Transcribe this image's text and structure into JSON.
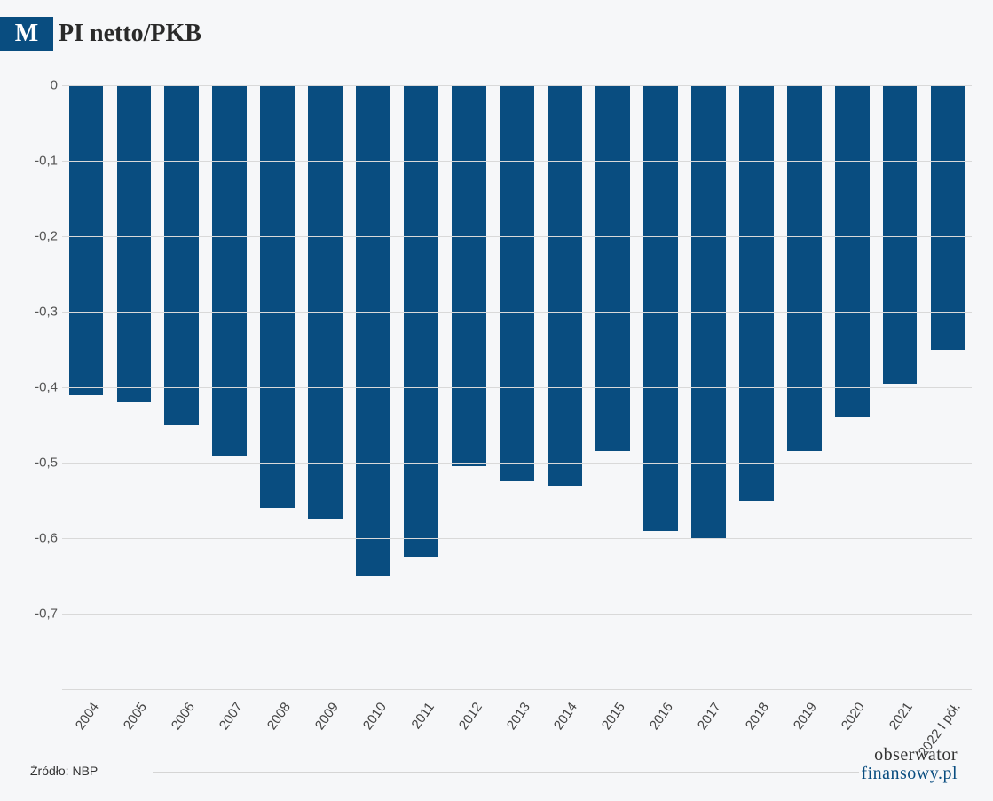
{
  "title": {
    "box_letter": "M",
    "rest": "PI netto/PKB",
    "box_bg": "#094d80",
    "box_fg": "#ffffff",
    "text_color": "#2a2a2a",
    "fontsize": 28
  },
  "chart": {
    "type": "bar",
    "background_color": "#f6f7f9",
    "grid_color": "#d9d9d9",
    "bar_color": "#094d80",
    "axis_label_color": "#555555",
    "xlabel_color": "#444444",
    "ylim": [
      -0.8,
      0
    ],
    "yticks": [
      0,
      -0.1,
      -0.2,
      -0.3,
      -0.4,
      -0.5,
      -0.6,
      -0.7
    ],
    "ytick_labels": [
      "0",
      "-0,1",
      "-0,2",
      "-0,3",
      "-0,4",
      "-0,5",
      "-0,6",
      "-0,7"
    ],
    "bar_width_ratio": 0.72,
    "xlabel_rotation_deg": -55,
    "categories": [
      "2004",
      "2005",
      "2006",
      "2007",
      "2008",
      "2009",
      "2010",
      "2011",
      "2012",
      "2013",
      "2014",
      "2015",
      "2016",
      "2017",
      "2018",
      "2019",
      "2020",
      "2021",
      "2022 I pół."
    ],
    "values": [
      -0.41,
      -0.42,
      -0.45,
      -0.49,
      -0.56,
      -0.575,
      -0.65,
      -0.625,
      -0.505,
      -0.525,
      -0.53,
      -0.485,
      -0.59,
      -0.6,
      -0.55,
      -0.485,
      -0.44,
      -0.395,
      -0.35
    ],
    "tick_fontsize": 15,
    "font_family": "Arial"
  },
  "footer": {
    "source_label": "Źródło: NBP",
    "source_color": "#333333",
    "line_color": "#d5d5d5",
    "logo_top": "obserwator",
    "logo_bottom": "finansowy.pl",
    "logo_top_color": "#333333",
    "logo_bottom_color": "#094d80",
    "logo_fontsize": 20
  }
}
